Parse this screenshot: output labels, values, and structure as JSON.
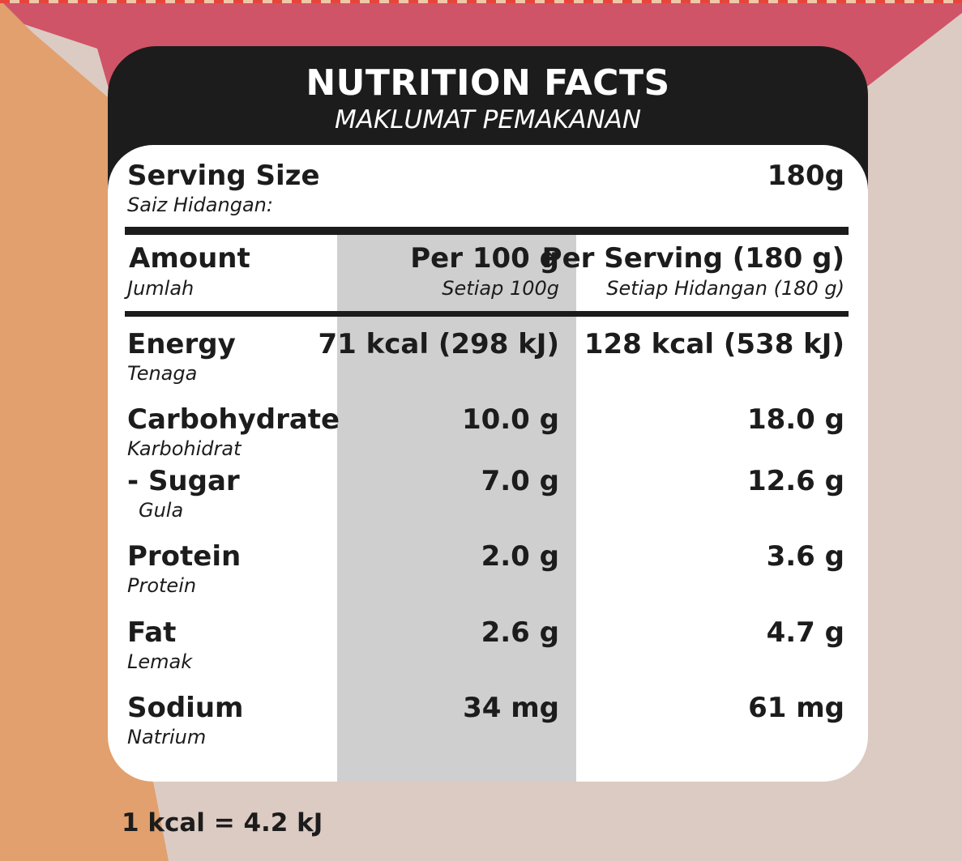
{
  "colors": {
    "bg_pink": "#dccbc3",
    "bg_orange": "#e1a06e",
    "bg_red": "#cf5468",
    "panel_black": "#1c1c1c",
    "card_white": "#ffffff",
    "column_gray": "#cfcfcf"
  },
  "header": {
    "title": "NUTRITION FACTS",
    "subtitle": "MAKLUMAT PEMAKANAN"
  },
  "serving": {
    "label": "Serving Size",
    "label_local": "Saiz Hidangan:",
    "value": "180g"
  },
  "columns": {
    "amount": "Amount",
    "amount_local": "Jumlah",
    "per100": "Per 100 g",
    "per100_local": "Setiap 100g",
    "perserving": "Per Serving (180 g)",
    "perserving_local": "Setiap Hidangan (180 g)"
  },
  "rows": [
    {
      "name": "Energy",
      "local": "Tenaga",
      "per100": "71 kcal (298 kJ)",
      "serving": "128 kcal (538 kJ)"
    },
    {
      "name": "Carbohydrate",
      "local": "Karbohidrat",
      "per100": "10.0 g",
      "serving": "18.0 g"
    },
    {
      "name": "- Sugar",
      "local": "Gula",
      "per100": "7.0 g",
      "serving": "12.6 g"
    },
    {
      "name": "Protein",
      "local": "Protein",
      "per100": "2.0 g",
      "serving": "3.6 g"
    },
    {
      "name": "Fat",
      "local": "Lemak",
      "per100": "2.6 g",
      "serving": "4.7 g"
    },
    {
      "name": "Sodium",
      "local": "Natrium",
      "per100": "34 mg",
      "serving": "61 mg"
    }
  ],
  "footer": {
    "note": "1 kcal = 4.2 kJ"
  }
}
